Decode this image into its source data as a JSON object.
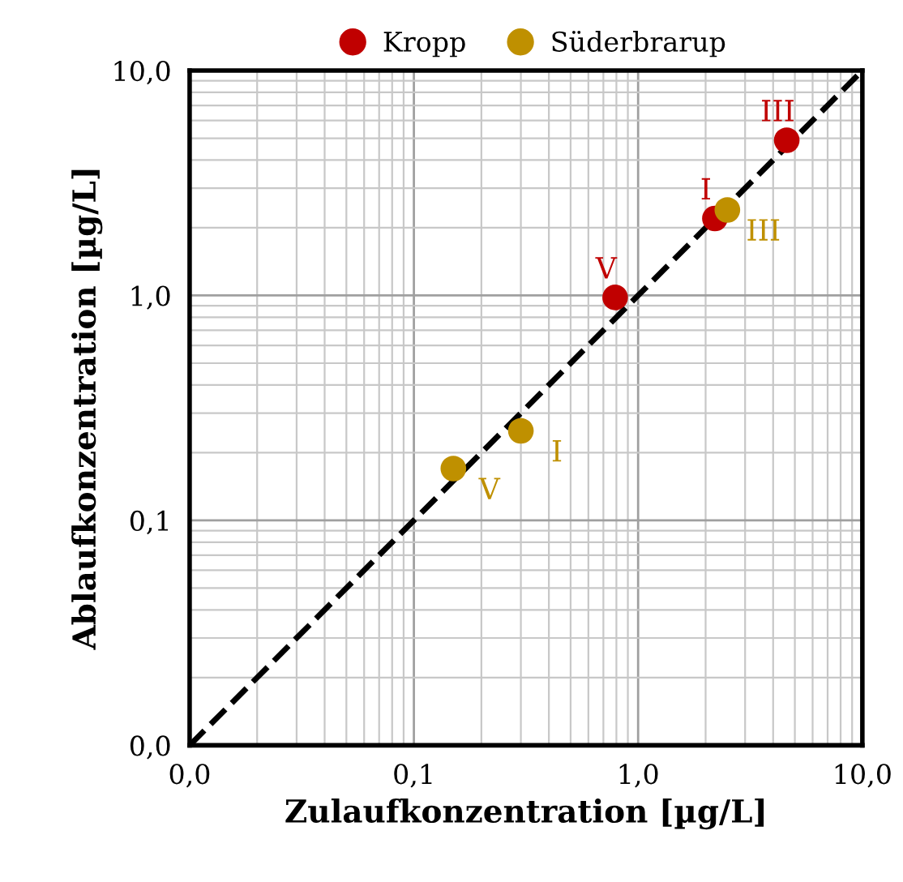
{
  "chart_data": {
    "type": "scatter",
    "xlabel": "Zulaufkonzentration [µg/L]",
    "ylabel": "Ablaufkonzentration [µg/L]",
    "log": "xy",
    "xlim": [
      0.01,
      10
    ],
    "ylim": [
      0.01,
      10
    ],
    "xticks": [
      {
        "value": 0.01,
        "label": "0,0"
      },
      {
        "value": 0.1,
        "label": "0,1"
      },
      {
        "value": 1,
        "label": "1,0"
      },
      {
        "value": 10,
        "label": "10,0"
      }
    ],
    "yticks": [
      {
        "value": 0.01,
        "label": "0,0"
      },
      {
        "value": 0.1,
        "label": "0,1"
      },
      {
        "value": 1,
        "label": "1,0"
      },
      {
        "value": 10,
        "label": "10,0"
      }
    ],
    "grid": true,
    "legend": "top",
    "marker": "circle",
    "series": [
      {
        "name": "Kropp",
        "color": "#c00000",
        "x": [
          0.79,
          2.2,
          4.6
        ],
        "values": [
          0.98,
          2.2,
          4.9
        ]
      },
      {
        "name": "Süderbrarup",
        "color": "#bf9000",
        "x": [
          0.15,
          0.3,
          2.5
        ],
        "values": [
          0.17,
          0.25,
          2.4
        ]
      },
      {
        "type": "line",
        "color": "#000000",
        "line_style": "dashed",
        "marker": "none",
        "x": [
          0.01,
          10
        ],
        "values": [
          0.01,
          10
        ]
      }
    ],
    "annotations": [
      {
        "text": "V",
        "x": 0.79,
        "y": 0.98
      },
      {
        "text": "I",
        "x": 2.2,
        "y": 2.2
      },
      {
        "text": "III",
        "x": 4.6,
        "y": 4.9
      },
      {
        "text": "V",
        "x": 0.15,
        "y": 0.17
      },
      {
        "text": "I",
        "x": 0.3,
        "y": 0.25
      },
      {
        "text": "III",
        "x": 2.5,
        "y": 2.4
      }
    ]
  }
}
